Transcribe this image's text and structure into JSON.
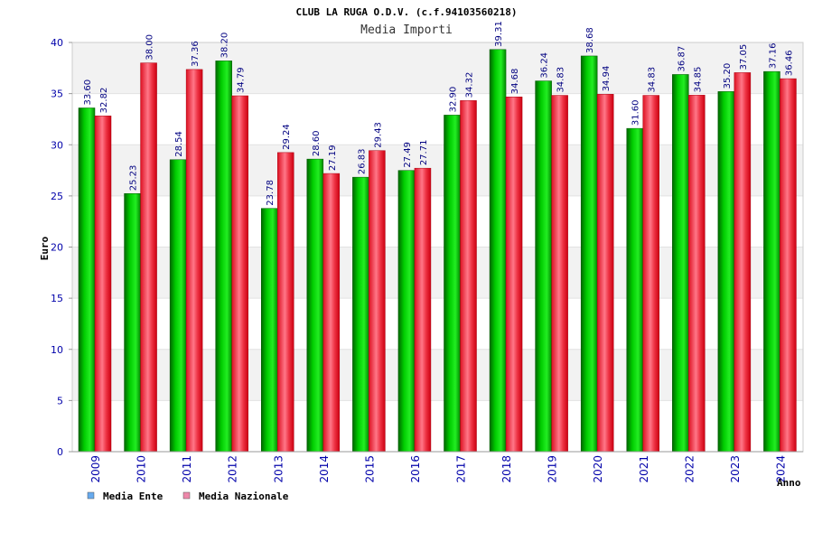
{
  "colors": {
    "series_ente": "#00bb00",
    "series_nazionale": "#ee2233",
    "legend_ente": "#66aaee",
    "legend_nazionale": "#ee88aa",
    "band": "#f2f2f2",
    "tick_text": "#0000aa",
    "value_text": "#000080"
  },
  "chart_data": {
    "type": "bar",
    "title": "CLUB LA RUGA O.D.V. (c.f.94103560218)",
    "subtitle": "Media Importi",
    "xlabel": "Anno",
    "ylabel": "Euro",
    "ylim": [
      0,
      40
    ],
    "yticks": [
      "0",
      "5",
      "10",
      "15",
      "20",
      "25",
      "30",
      "35",
      "40"
    ],
    "grid": true,
    "legend_position": "bottom-left",
    "categories": [
      "2009",
      "2010",
      "2011",
      "2012",
      "2013",
      "2014",
      "2015",
      "2016",
      "2017",
      "2018",
      "2019",
      "2020",
      "2021",
      "2022",
      "2023",
      "2024"
    ],
    "series": [
      {
        "name": "Media Ente",
        "values": [
          33.6,
          25.23,
          28.54,
          38.2,
          23.78,
          28.6,
          26.83,
          27.49,
          32.9,
          39.31,
          36.24,
          38.68,
          31.6,
          36.87,
          35.2,
          37.16
        ]
      },
      {
        "name": "Media Nazionale",
        "values": [
          32.82,
          38.0,
          37.36,
          34.79,
          29.24,
          27.19,
          29.43,
          27.71,
          34.32,
          34.68,
          34.83,
          34.94,
          34.83,
          34.85,
          37.05,
          36.46
        ]
      }
    ],
    "value_labels": [
      [
        "33.60",
        "25.23",
        "28.54",
        "38.20",
        "23.78",
        "28.60",
        "26.83",
        "27.49",
        "32.90",
        "39.31",
        "36.24",
        "38.68",
        "31.60",
        "36.87",
        "35.20",
        "37.16"
      ],
      [
        "32.82",
        "38.00",
        "37.36",
        "34.79",
        "29.24",
        "27.19",
        "29.43",
        "27.71",
        "34.32",
        "34.68",
        "34.83",
        "34.94",
        "34.83",
        "34.85",
        "37.05",
        "36.46"
      ]
    ]
  }
}
